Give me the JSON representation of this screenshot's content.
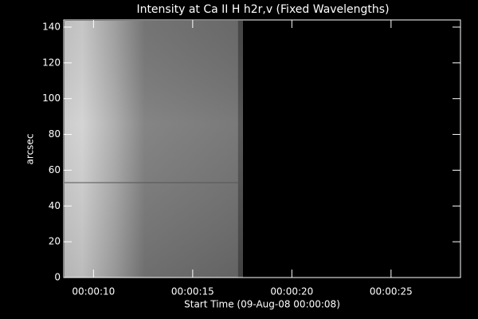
{
  "chart_data": {
    "type": "image",
    "title": "Intensity at Ca II H h2r,v (Fixed Wavelengths)",
    "xlabel": "Start Time (09-Aug-08 00:00:08)",
    "ylabel": "arcsec",
    "xlim": [
      8.5,
      28.5
    ],
    "xticks": [
      {
        "value": 10,
        "label": "00:00:10"
      },
      {
        "value": 15,
        "label": "00:00:15"
      },
      {
        "value": 20,
        "label": "00:00:20"
      },
      {
        "value": 25,
        "label": "00:00:25"
      }
    ],
    "ylim": [
      0,
      144
    ],
    "yticks": [
      0,
      20,
      40,
      60,
      80,
      100,
      120,
      140
    ]
  }
}
